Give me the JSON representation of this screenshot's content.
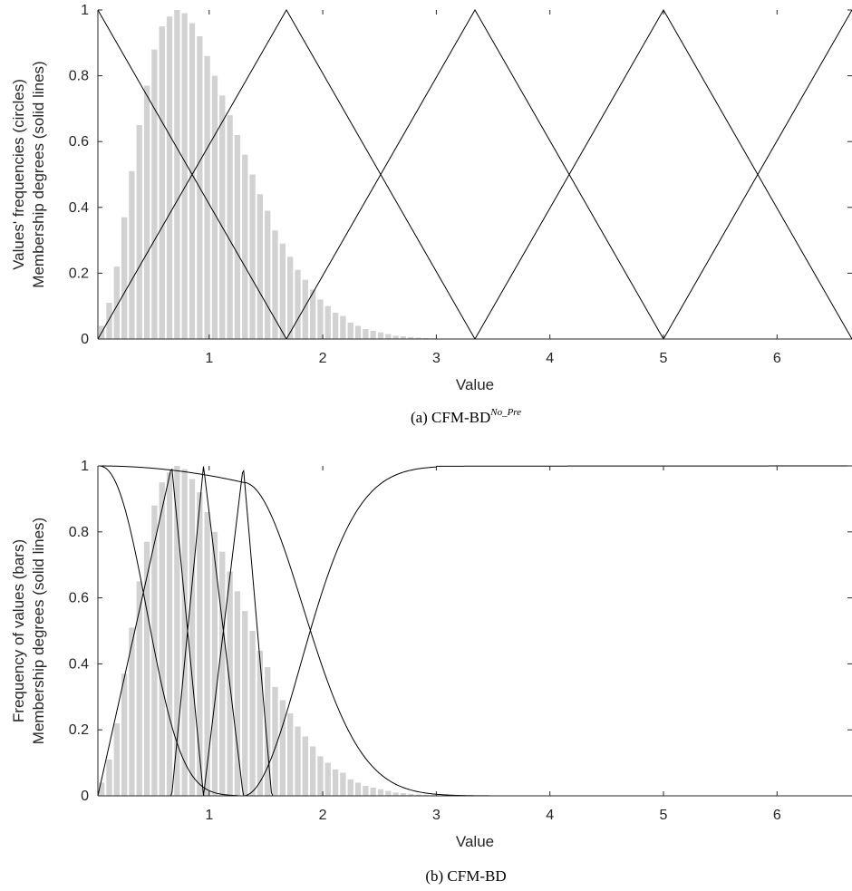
{
  "colors": {
    "bar": "#d2d2d2",
    "line": "#000000",
    "axis": "#262626"
  },
  "chart_data": [
    {
      "type": "bar",
      "title": "",
      "caption": {
        "prefix": "(a) CFM-BD",
        "superscript": "No_Pre"
      },
      "xlabel": "Value",
      "ylabel_lines": [
        "Values' frequencies (circles)",
        "Membership degrees (solid lines)"
      ],
      "xlim": [
        0.02,
        6.66
      ],
      "ylim": [
        0,
        1
      ],
      "xticks": [
        "1",
        "2",
        "3",
        "4",
        "5",
        "6"
      ],
      "yticks": [
        "0",
        "0.2",
        "0.4",
        "0.6",
        "0.8",
        "1"
      ],
      "grid": false,
      "bars": {
        "start": 0.02,
        "width": 0.0664,
        "values": [
          0.04,
          0.11,
          0.22,
          0.37,
          0.51,
          0.65,
          0.77,
          0.88,
          0.95,
          0.98,
          1.0,
          0.99,
          0.96,
          0.92,
          0.86,
          0.8,
          0.74,
          0.68,
          0.62,
          0.56,
          0.5,
          0.44,
          0.39,
          0.33,
          0.29,
          0.25,
          0.21,
          0.18,
          0.15,
          0.12,
          0.1,
          0.08,
          0.07,
          0.05,
          0.04,
          0.03,
          0.025,
          0.02,
          0.015,
          0.01,
          0.008,
          0.006,
          0.004,
          0.003,
          0.002,
          0.001
        ]
      },
      "membership_functions": [
        {
          "shape": "triangle",
          "a": 0.02,
          "b": 0.02,
          "c": 1.68
        },
        {
          "shape": "triangle",
          "a": 0.02,
          "b": 1.68,
          "c": 3.34
        },
        {
          "shape": "triangle",
          "a": 1.68,
          "b": 3.34,
          "c": 5.0
        },
        {
          "shape": "triangle",
          "a": 3.34,
          "b": 5.0,
          "c": 6.66
        },
        {
          "shape": "triangle",
          "a": 5.0,
          "b": 6.66,
          "c": 6.66
        }
      ]
    },
    {
      "type": "bar",
      "title": "",
      "caption": {
        "prefix": "(b) CFM-BD",
        "superscript": ""
      },
      "xlabel": "Value",
      "ylabel_lines": [
        "Frequency of values (bars)",
        "Membership degrees (solid lines)"
      ],
      "xlim": [
        0.02,
        6.66
      ],
      "ylim": [
        0,
        1
      ],
      "xticks": [
        "1",
        "2",
        "3",
        "4",
        "5",
        "6"
      ],
      "yticks": [
        "0",
        "0.2",
        "0.4",
        "0.6",
        "0.8",
        "1"
      ],
      "grid": false,
      "bars": {
        "start": 0.02,
        "width": 0.0664,
        "values": [
          0.04,
          0.11,
          0.22,
          0.37,
          0.51,
          0.65,
          0.77,
          0.88,
          0.95,
          0.98,
          1.0,
          0.99,
          0.96,
          0.92,
          0.86,
          0.8,
          0.74,
          0.68,
          0.62,
          0.56,
          0.5,
          0.44,
          0.39,
          0.33,
          0.29,
          0.25,
          0.21,
          0.18,
          0.15,
          0.12,
          0.1,
          0.08,
          0.07,
          0.05,
          0.04,
          0.03,
          0.025,
          0.02,
          0.015,
          0.01,
          0.008,
          0.006,
          0.004,
          0.003,
          0.002,
          0.001
        ]
      },
      "membership_functions": [
        {
          "shape": "z-sigmoid",
          "center": 0.67,
          "spread": 0.32
        },
        {
          "shape": "triangle",
          "a": 0.02,
          "b": 0.67,
          "c": 0.95
        },
        {
          "shape": "triangle",
          "a": 0.67,
          "b": 0.95,
          "c": 1.3
        },
        {
          "shape": "triangle",
          "a": 0.95,
          "b": 1.3,
          "c": 1.55
        },
        {
          "shape": "s-curve",
          "a": 1.3,
          "plateau_at": 3.0
        },
        {
          "shape": "z-curve",
          "end": 3.0
        }
      ]
    }
  ]
}
